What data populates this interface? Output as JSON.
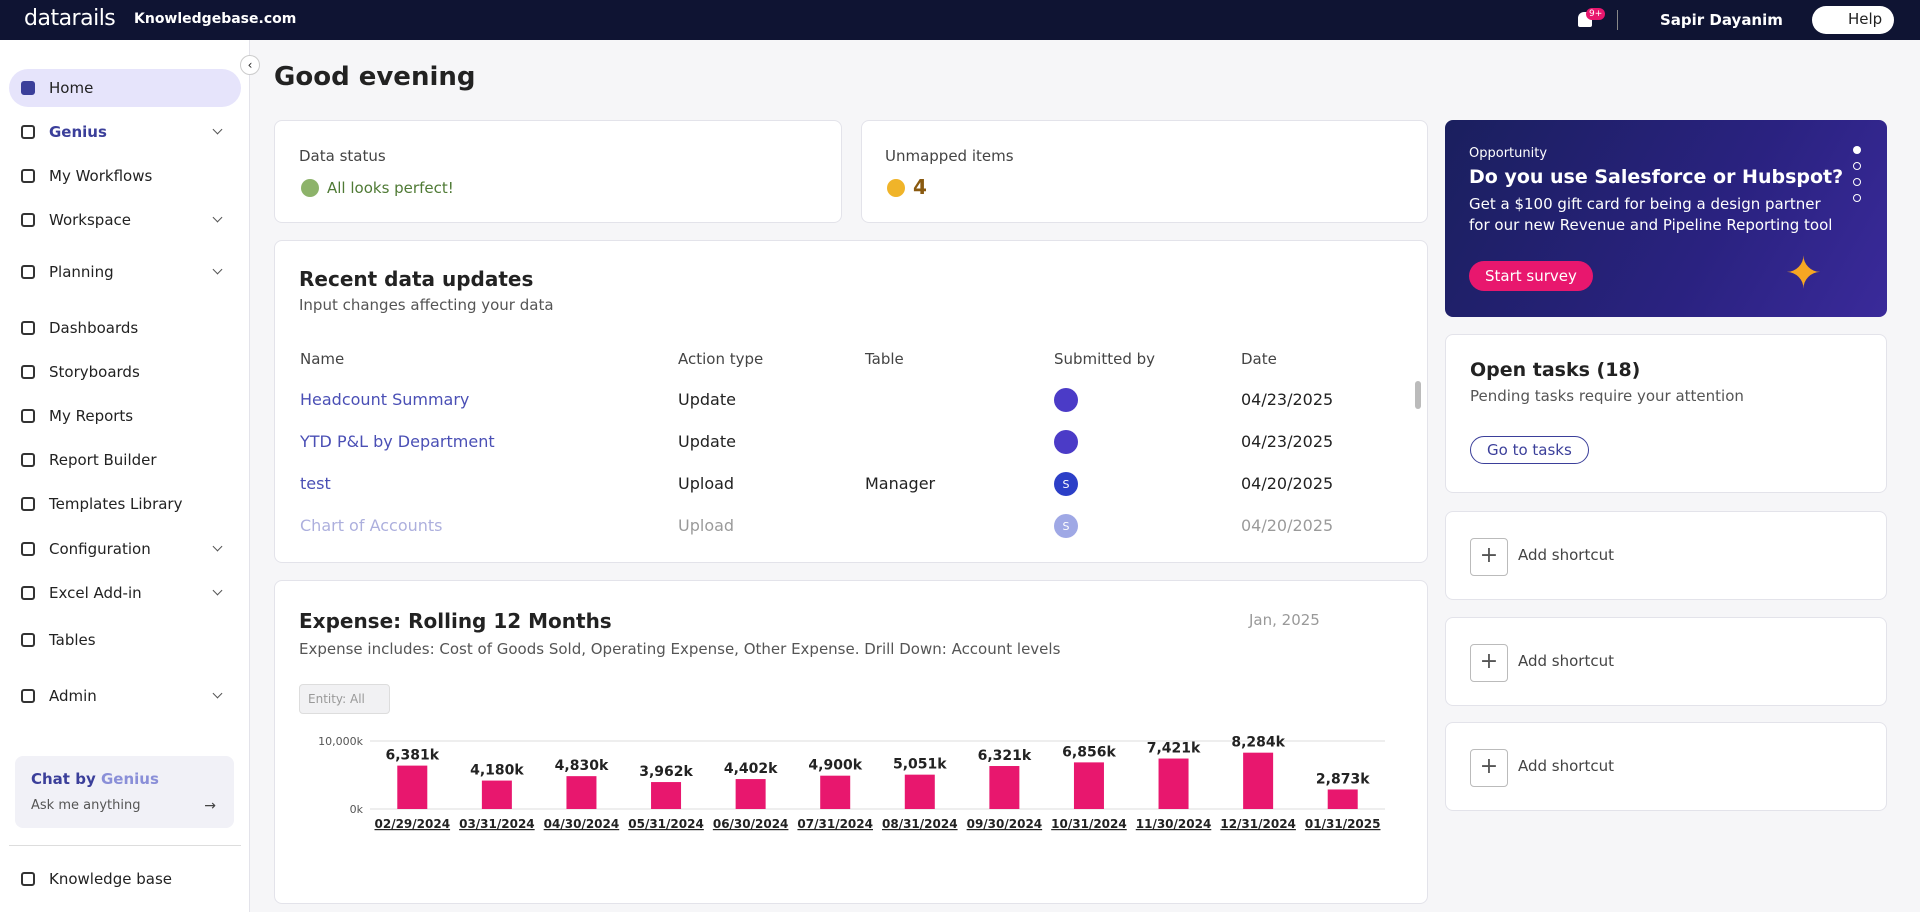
{
  "header": {
    "brand": "datarails",
    "site": "Knowledgebase.com",
    "badge": "9+",
    "user": "Sapir Dayanim",
    "help": "Help"
  },
  "sidebar": {
    "items": [
      {
        "label": "Home",
        "active": true
      },
      {
        "label": "Genius",
        "expandable": true
      },
      {
        "label": "My Workflows"
      },
      {
        "label": "Workspace",
        "expandable": true
      },
      {
        "label": "Planning",
        "expandable": true
      },
      {
        "label": "Dashboards"
      },
      {
        "label": "Storyboards"
      },
      {
        "label": "My Reports"
      },
      {
        "label": "Report Builder"
      },
      {
        "label": "Templates Library"
      },
      {
        "label": "Configuration",
        "expandable": true
      },
      {
        "label": "Excel Add-in",
        "expandable": true
      },
      {
        "label": "Tables"
      },
      {
        "label": "Admin",
        "expandable": true
      }
    ],
    "chat": {
      "title": "Chat by",
      "genius": "Genius",
      "subtitle": "Ask me anything"
    },
    "footer": "Knowledge base"
  },
  "greeting": "Good evening",
  "data_status": {
    "title": "Data status",
    "status": "All looks perfect!"
  },
  "unmapped": {
    "title": "Unmapped items",
    "count": "4"
  },
  "recent": {
    "title": "Recent data updates",
    "subtitle": "Input changes affecting your data",
    "columns": [
      "Name",
      "Action type",
      "Table",
      "Submitted by",
      "Date"
    ],
    "rows": [
      {
        "name": "Headcount Summary",
        "action": "Update",
        "date": "04/23/2025"
      },
      {
        "name": "YTD P&L by Department",
        "action": "Update",
        "date": "04/23/2025"
      },
      {
        "name": "test",
        "action": "Upload",
        "table": "Manager",
        "submitted": "S",
        "date": "04/20/2025"
      },
      {
        "name": "Chart of Accounts",
        "action": "Upload",
        "submitted": "S",
        "date": "04/20/2025"
      }
    ]
  },
  "expense": {
    "title": "Expense: Rolling 12 Months",
    "subtitle": "Expense includes: Cost of Goods Sold, Operating Expense, Other Expense. Drill Down: Account levels",
    "date": "Jan, 2025",
    "entity": "Entity: All",
    "chart_data": {
      "type": "bar",
      "color": "#e8176e",
      "categories": [
        "02/29/2024",
        "03/31/2024",
        "04/30/2024",
        "05/31/2024",
        "06/30/2024",
        "07/31/2024",
        "08/31/2024",
        "09/30/2024",
        "10/31/2024",
        "11/30/2024",
        "12/31/2024",
        "01/31/2025"
      ],
      "values": [
        6381,
        4180,
        4830,
        3962,
        4402,
        4900,
        5051,
        6321,
        6856,
        7421,
        8284,
        2873
      ],
      "value_labels": [
        "6,381k",
        "4,180k",
        "4,830k",
        "3,962k",
        "4,402k",
        "4,900k",
        "5,051k",
        "6,321k",
        "6,856k",
        "7,421k",
        "8,284k",
        "2,873k"
      ],
      "ylim": [
        0,
        10000
      ],
      "yticks": [
        {
          "value": 0,
          "label": "0k"
        },
        {
          "value": 10000,
          "label": "10,000k"
        }
      ],
      "grid": true
    }
  },
  "promo": {
    "kicker": "Opportunity",
    "title": "Do you use Salesforce or Hubspot?",
    "text": "Get a $100 gift card for being a design partner for our new Revenue and Pipeline Reporting tool",
    "button": "Start survey"
  },
  "tasks": {
    "title": "Open tasks (18)",
    "subtitle": "Pending tasks require your attention",
    "button": "Go to tasks"
  },
  "shortcuts": [
    "Add shortcut",
    "Add shortcut",
    "Add shortcut"
  ]
}
